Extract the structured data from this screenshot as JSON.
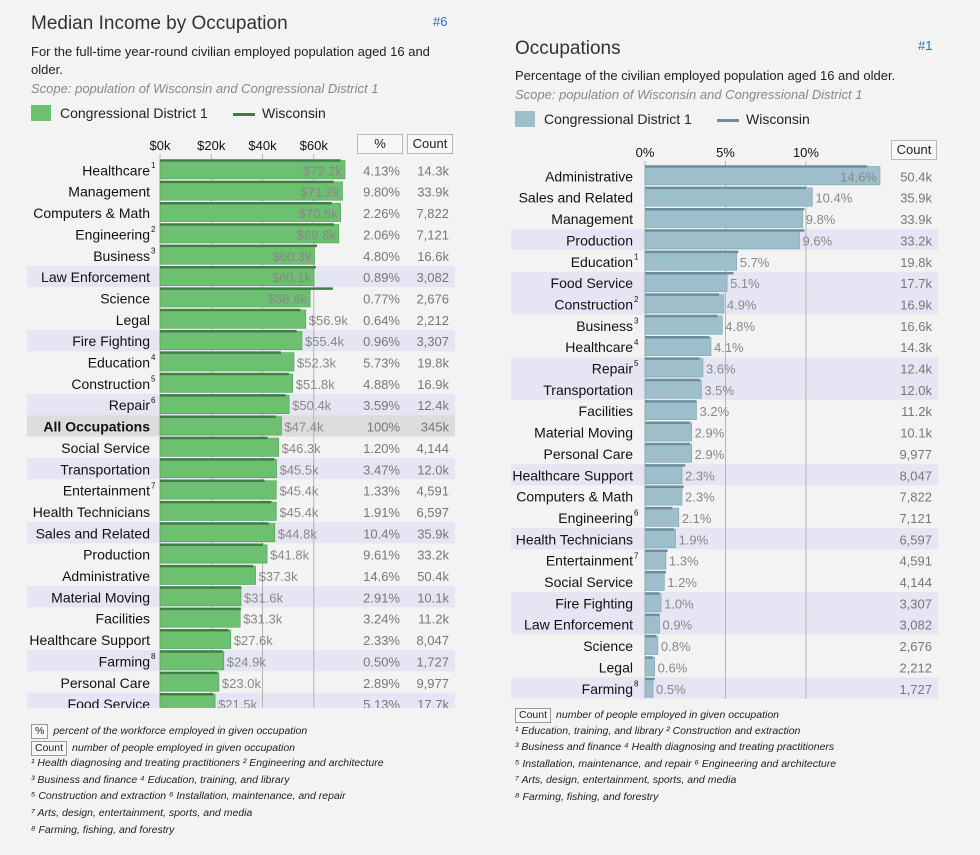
{
  "colors": {
    "left_bar": "#6cc070",
    "left_line": "#3f7f45",
    "right_bar": "#9dbfcc",
    "right_line": "#6e8e99",
    "row_alt": "#e5e5f3",
    "highlight_row": "#dcdcdc"
  },
  "left": {
    "title": "Median Income by Occupation",
    "number": "#6",
    "subtitle": "For the full-time year-round civilian employed population aged 16 and older.",
    "scope": "Scope: population of Wisconsin and Congressional District 1",
    "legend_district": "Congressional District 1",
    "legend_state": "Wisconsin",
    "col_pct": "%",
    "col_count": "Count",
    "notes": [
      {
        "badge": "%",
        "text": "percent of the workforce employed in given occupation"
      },
      {
        "badge": "Count",
        "text": "number of people employed in given occupation"
      },
      {
        "text": "¹ Health diagnosing and treating practitioners     ² Engineering and architecture"
      },
      {
        "text": "³ Business and finance     ⁴ Education, training, and library"
      },
      {
        "text": "⁵ Construction and extraction     ⁶ Installation, maintenance, and repair"
      },
      {
        "text": "⁷ Arts, design, entertainment, sports, and media"
      },
      {
        "text": "⁸ Farming, fishing, and forestry"
      }
    ]
  },
  "right": {
    "title": "Occupations",
    "number": "#1",
    "subtitle": "Percentage of the civilian employed population aged 16 and older.",
    "scope": "Scope: population of Wisconsin and Congressional District 1",
    "legend_district": "Congressional District 1",
    "legend_state": "Wisconsin",
    "col_count": "Count",
    "notes": [
      {
        "badge": "Count",
        "text": "number of people employed in given occupation"
      },
      {
        "text": "¹ Education, training, and library     ² Construction and extraction"
      },
      {
        "text": "³ Business and finance     ⁴ Health diagnosing and treating practitioners"
      },
      {
        "text": "⁵ Installation, maintenance, and repair     ⁶ Engineering and architecture"
      },
      {
        "text": "⁷ Arts, design, entertainment, sports, and media"
      },
      {
        "text": "⁸ Farming, fishing, and forestry"
      }
    ]
  },
  "chart_data": [
    {
      "type": "bar",
      "orientation": "horizontal",
      "title": "Median Income by Occupation",
      "xlim": [
        0,
        72200
      ],
      "ticks": [
        "$0k",
        "$20k",
        "$40k",
        "$60k"
      ],
      "tick_values": [
        0,
        20000,
        40000,
        60000
      ],
      "categories": [
        "Healthcare",
        "Management",
        "Computers & Math",
        "Engineering",
        "Business",
        "Law Enforcement",
        "Science",
        "Legal",
        "Fire Fighting",
        "Education",
        "Construction",
        "Repair",
        "All Occupations",
        "Social Service",
        "Transportation",
        "Entertainment",
        "Health Technicians",
        "Sales and Related",
        "Production",
        "Administrative",
        "Material Moving",
        "Facilities",
        "Healthcare Support",
        "Farming",
        "Personal Care",
        "Food Service"
      ],
      "superscripts": [
        "1",
        "",
        "",
        "2",
        "3",
        "",
        "",
        "",
        "",
        "4",
        "5",
        "6",
        "",
        "",
        "",
        "7",
        "",
        "",
        "",
        "",
        "",
        "",
        "",
        "8",
        "",
        ""
      ],
      "series": [
        {
          "name": "Congressional District 1",
          "values": [
            72200,
            71200,
            70500,
            69800,
            60300,
            60100,
            58600,
            56900,
            55400,
            52300,
            51800,
            50400,
            47400,
            46300,
            45500,
            45400,
            45400,
            44800,
            41800,
            37300,
            31600,
            31300,
            27600,
            24900,
            23000,
            21500
          ]
        },
        {
          "name": "Wisconsin",
          "values": [
            70500,
            67800,
            67000,
            67900,
            61300,
            60800,
            67500,
            54800,
            53300,
            47200,
            50300,
            49000,
            45200,
            42000,
            44600,
            40800,
            43500,
            42400,
            40200,
            36400,
            31700,
            31600,
            26800,
            24400,
            22500,
            20700
          ]
        }
      ],
      "value_labels": [
        "$72.2k",
        "$71.2k",
        "$70.5k",
        "$69.8k",
        "$60.3k",
        "$60.1k",
        "$58.6k",
        "$56.9k",
        "$55.4k",
        "$52.3k",
        "$51.8k",
        "$50.4k",
        "$47.4k",
        "$46.3k",
        "$45.5k",
        "$45.4k",
        "$45.4k",
        "$44.8k",
        "$41.8k",
        "$37.3k",
        "$31.6k",
        "$31.3k",
        "$27.6k",
        "$24.9k",
        "$23.0k",
        "$21.5k"
      ],
      "percent": [
        "4.13%",
        "9.80%",
        "2.26%",
        "2.06%",
        "4.80%",
        "0.89%",
        "0.77%",
        "0.64%",
        "0.96%",
        "5.73%",
        "4.88%",
        "3.59%",
        "100%",
        "1.20%",
        "3.47%",
        "1.33%",
        "1.91%",
        "10.4%",
        "9.61%",
        "14.6%",
        "2.91%",
        "3.24%",
        "2.33%",
        "0.50%",
        "2.89%",
        "5.13%"
      ],
      "count": [
        "14.3k",
        "33.9k",
        "7,822",
        "7,121",
        "16.6k",
        "3,082",
        "2,676",
        "2,212",
        "3,307",
        "19.8k",
        "16.9k",
        "12.4k",
        "345k",
        "4,144",
        "12.0k",
        "4,591",
        "6,597",
        "35.9k",
        "33.2k",
        "50.4k",
        "10.1k",
        "11.2k",
        "8,047",
        "1,727",
        "9,977",
        "17.7k"
      ],
      "shaded_rows": [
        5,
        8,
        11,
        14,
        17,
        20,
        23,
        25
      ],
      "highlight_row": 12
    },
    {
      "type": "bar",
      "orientation": "horizontal",
      "title": "Occupations",
      "xlim": [
        0,
        14.6
      ],
      "ticks": [
        "0%",
        "5%",
        "10%"
      ],
      "tick_values": [
        0,
        5,
        10
      ],
      "categories": [
        "Administrative",
        "Sales and Related",
        "Management",
        "Production",
        "Education",
        "Food Service",
        "Construction",
        "Business",
        "Healthcare",
        "Repair",
        "Transportation",
        "Facilities",
        "Material Moving",
        "Personal Care",
        "Healthcare Support",
        "Computers & Math",
        "Engineering",
        "Health Technicians",
        "Entertainment",
        "Social Service",
        "Fire Fighting",
        "Law Enforcement",
        "Science",
        "Legal",
        "Farming"
      ],
      "superscripts": [
        "",
        "",
        "",
        "",
        "1",
        "",
        "2",
        "3",
        "4",
        "5",
        "",
        "",
        "",
        "",
        "",
        "",
        "6",
        "",
        "7",
        "",
        "",
        "",
        "",
        "",
        "8"
      ],
      "series": [
        {
          "name": "Congressional District 1",
          "values": [
            14.6,
            10.4,
            9.8,
            9.6,
            5.7,
            5.1,
            4.9,
            4.8,
            4.1,
            3.6,
            3.5,
            3.2,
            2.9,
            2.9,
            2.3,
            2.3,
            2.1,
            1.9,
            1.3,
            1.2,
            1.0,
            0.9,
            0.8,
            0.6,
            0.5
          ]
        },
        {
          "name": "Wisconsin",
          "values": [
            13.8,
            10.0,
            9.9,
            9.9,
            5.8,
            5.5,
            4.6,
            4.5,
            4.0,
            3.4,
            3.4,
            3.2,
            2.8,
            2.8,
            2.5,
            2.4,
            1.7,
            1.8,
            1.4,
            1.3,
            0.9,
            0.9,
            0.7,
            0.5,
            0.6
          ]
        }
      ],
      "value_labels": [
        "14.6%",
        "10.4%",
        "9.8%",
        "9.6%",
        "5.7%",
        "5.1%",
        "4.9%",
        "4.8%",
        "4.1%",
        "3.6%",
        "3.5%",
        "3.2%",
        "2.9%",
        "2.9%",
        "2.3%",
        "2.3%",
        "2.1%",
        "1.9%",
        "1.3%",
        "1.2%",
        "1.0%",
        "0.9%",
        "0.8%",
        "0.6%",
        "0.5%"
      ],
      "count": [
        "50.4k",
        "35.9k",
        "33.9k",
        "33.2k",
        "19.8k",
        "17.7k",
        "16.9k",
        "16.6k",
        "14.3k",
        "12.4k",
        "12.0k",
        "11.2k",
        "10.1k",
        "9,977",
        "8,047",
        "7,822",
        "7,121",
        "6,597",
        "4,591",
        "4,144",
        "3,307",
        "3,082",
        "2,676",
        "2,212",
        "1,727"
      ],
      "shaded_rows": [
        3,
        5,
        6,
        9,
        10,
        14,
        17,
        20,
        21,
        24
      ]
    }
  ]
}
